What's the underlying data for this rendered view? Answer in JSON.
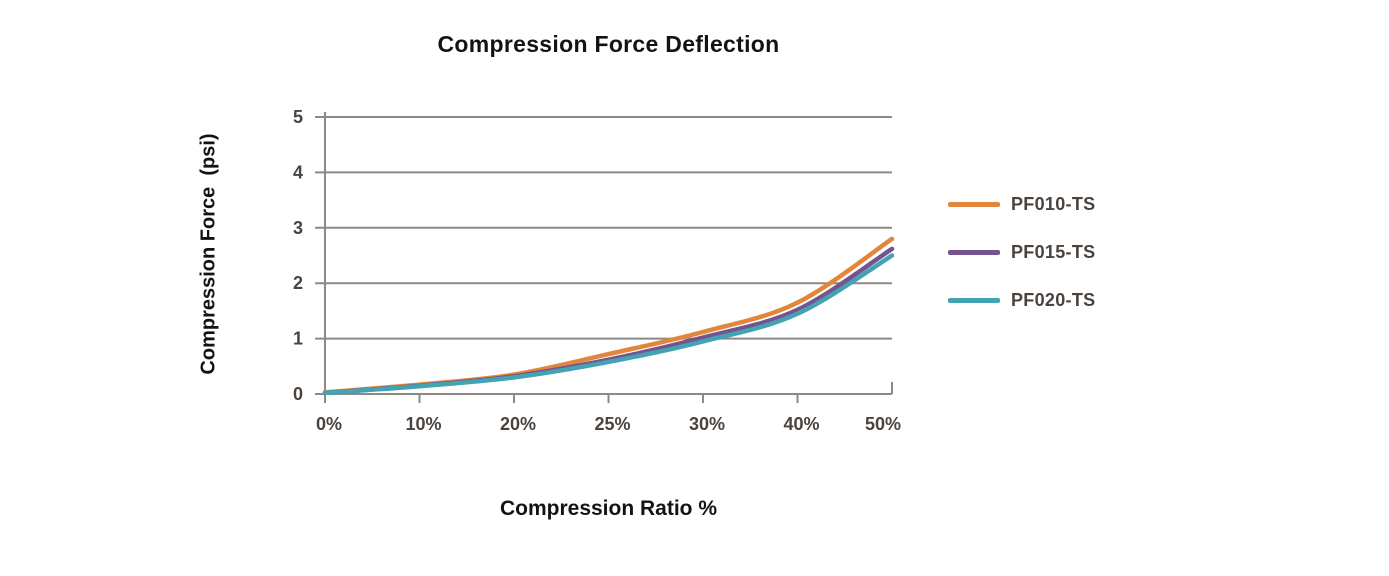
{
  "title": "Compression Force Deflection",
  "x_axis_title": "Compression Ratio %",
  "y_axis_title": "Compression Force  (psi)",
  "colors": {
    "grid": "#8E8A83",
    "axis": "#8E8A83",
    "tick_text": "#4B433D",
    "title_text": "#131313",
    "background": "#FFFFFF",
    "series_orange": "#E2863C",
    "series_purple": "#74538F",
    "series_teal": "#43A3B2"
  },
  "legend": {
    "position": "right",
    "items": [
      "PF010-TS",
      "PF015-TS",
      "PF020-TS"
    ]
  },
  "chart_data": {
    "type": "line",
    "title": "Compression Force Deflection",
    "xlabel": "Compression Ratio %",
    "ylabel": "Compression Force (psi)",
    "categories": [
      "0%",
      "10%",
      "20%",
      "25%",
      "30%",
      "40%",
      "50%"
    ],
    "y_ticks": [
      0,
      1,
      2,
      3,
      4,
      5
    ],
    "ylim": [
      0,
      5
    ],
    "grid": "horizontal",
    "legend_position": "right",
    "series": [
      {
        "name": "PF010-TS",
        "color": "#E2863C",
        "values": [
          0.03,
          0.17,
          0.35,
          0.72,
          1.12,
          1.65,
          2.8
        ]
      },
      {
        "name": "PF015-TS",
        "color": "#74538F",
        "values": [
          0.02,
          0.15,
          0.32,
          0.62,
          1.02,
          1.52,
          2.62
        ]
      },
      {
        "name": "PF020-TS",
        "color": "#43A3B2",
        "values": [
          0.02,
          0.14,
          0.3,
          0.58,
          0.95,
          1.45,
          2.5
        ]
      }
    ]
  }
}
